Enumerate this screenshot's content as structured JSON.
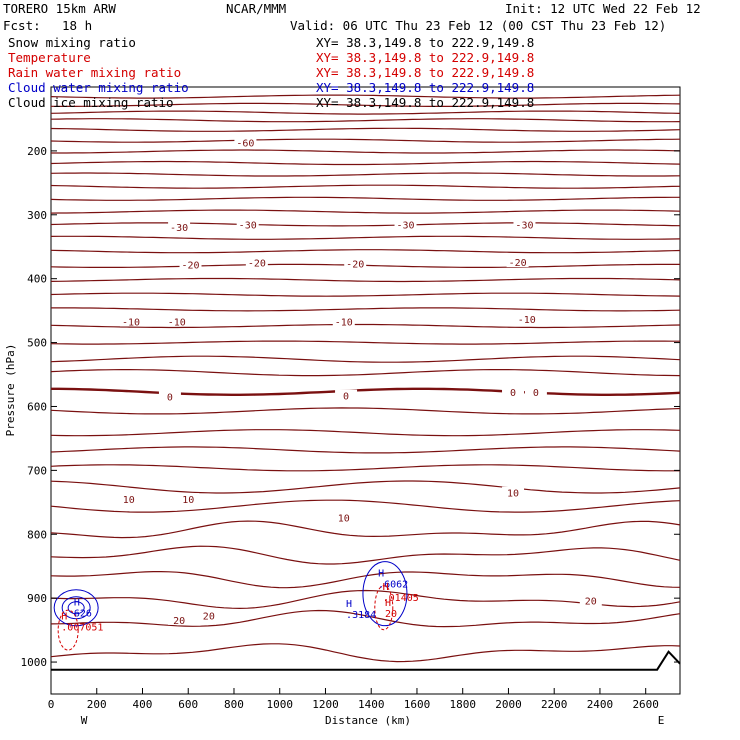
{
  "header": {
    "model": "TORERO  15km ARW",
    "center": "NCAR/MMM",
    "init": "Init: 12 UTC Wed 22 Feb 12",
    "fcst_label": "Fcst:",
    "fcst_value": "18 h",
    "valid": "Valid: 06 UTC Thu 23 Feb 12 (00 CST Thu 23 Feb 12)"
  },
  "legend": [
    {
      "label": "Snow mixing ratio",
      "color": "#000000",
      "xy": "XY=  38.3,149.8 to 222.9,149.8",
      "xy_color": "#000000"
    },
    {
      "label": "Temperature",
      "color": "#d40000",
      "xy": "XY=  38.3,149.8 to 222.9,149.8",
      "xy_color": "#d40000"
    },
    {
      "label": "Rain water mixing ratio",
      "color": "#d40000",
      "xy": "XY=  38.3,149.8 to 222.9,149.8",
      "xy_color": "#d40000"
    },
    {
      "label": "Cloud water mixing ratio",
      "color": "#0000c8",
      "xy": "XY=  38.3,149.8 to 222.9,149.8",
      "xy_color": "#0000c8"
    },
    {
      "label": "Cloud ice mixing ratio",
      "color": "#000000",
      "xy": "XY=  38.3,149.8 to 222.9,149.8",
      "xy_color": "#000000"
    }
  ],
  "colors": {
    "temperature": "#7a1010",
    "cloud_water": "#0000c8",
    "rain": "#d40000",
    "terrain": "#000000"
  },
  "chart_data": {
    "type": "contour",
    "xlabel": "Distance (km)",
    "ylabel": "Pressure (hPa)",
    "xlim": [
      0,
      2750
    ],
    "ylim": [
      1050,
      100
    ],
    "x_ticks": [
      0,
      200,
      400,
      600,
      800,
      1000,
      1200,
      1400,
      1600,
      1800,
      2000,
      2200,
      2400,
      2600
    ],
    "y_ticks": [
      200,
      300,
      400,
      500,
      600,
      700,
      800,
      900,
      1000
    ],
    "x_end_labels": {
      "left": "W",
      "right": "E"
    },
    "temperature_contour_pressures": [
      115,
      128,
      140,
      152,
      167,
      184,
      201,
      219,
      237,
      256,
      275,
      295,
      315,
      336,
      357,
      380,
      402,
      425,
      448,
      474,
      500,
      526,
      547,
      577,
      607,
      641,
      668,
      696,
      726,
      756,
      795,
      833,
      868,
      902,
      935,
      985
    ],
    "temperature_labels": [
      {
        "text": "-60",
        "x": 850,
        "p": 187
      },
      {
        "text": "-30",
        "x": 560,
        "p": 319
      },
      {
        "text": "-30",
        "x": 860,
        "p": 315
      },
      {
        "text": "-30",
        "x": 1550,
        "p": 315
      },
      {
        "text": "-30",
        "x": 2070,
        "p": 315
      },
      {
        "text": "-20",
        "x": 610,
        "p": 378
      },
      {
        "text": "-20",
        "x": 900,
        "p": 375
      },
      {
        "text": "-20",
        "x": 1330,
        "p": 376
      },
      {
        "text": "-20",
        "x": 2040,
        "p": 374
      },
      {
        "text": "-10",
        "x": 350,
        "p": 467
      },
      {
        "text": "-10",
        "x": 550,
        "p": 467
      },
      {
        "text": "-10",
        "x": 1280,
        "p": 467
      },
      {
        "text": "-10",
        "x": 2080,
        "p": 463
      },
      {
        "text": "0",
        "x": 520,
        "p": 584
      },
      {
        "text": "0",
        "x": 1290,
        "p": 583
      },
      {
        "text": "0",
        "x": 2020,
        "p": 577
      },
      {
        "text": "0",
        "x": 2120,
        "p": 577
      },
      {
        "text": "10",
        "x": 340,
        "p": 745
      },
      {
        "text": "10",
        "x": 600,
        "p": 745
      },
      {
        "text": "10",
        "x": 1280,
        "p": 774
      },
      {
        "text": "10",
        "x": 2020,
        "p": 735
      },
      {
        "text": "20",
        "x": 560,
        "p": 934
      },
      {
        "text": "20",
        "x": 690,
        "p": 927
      },
      {
        "text": "20",
        "x": 2360,
        "p": 904
      }
    ],
    "maxima": [
      {
        "label": "H",
        "value": "626",
        "x": 100,
        "p": 924,
        "color": "#0000c8"
      },
      {
        "label": "H",
        "value": ".007051",
        "x": 45,
        "p": 946,
        "color": "#d40000"
      },
      {
        "label": "H",
        "value": ".3184",
        "x": 1290,
        "p": 926,
        "color": "#0000c8"
      },
      {
        "label": "H",
        "value": ".6062",
        "x": 1430,
        "p": 879,
        "color": "#0000c8"
      },
      {
        "label": "H",
        "value": ".01405",
        "x": 1450,
        "p": 900,
        "color": "#d40000"
      },
      {
        "label": "H",
        "value": "20",
        "x": 1460,
        "p": 925,
        "color": "#d40000"
      }
    ],
    "terrain_pressure": 1012
  }
}
